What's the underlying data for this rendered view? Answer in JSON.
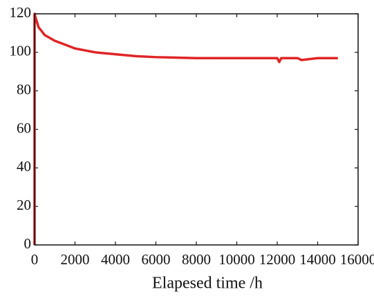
{
  "chart_data": {
    "type": "line",
    "x_label": "Elapesed time /h",
    "x": [
      0,
      0,
      50,
      200,
      500,
      1000,
      1500,
      2000,
      3000,
      4000,
      5000,
      6000,
      8000,
      9000,
      10000,
      11000,
      12000,
      12100,
      12200,
      13000,
      13200,
      14000,
      15000
    ],
    "series": [
      {
        "color": "#e02424",
        "values": [
          0,
          120,
          118,
          113,
          109,
          106,
          104,
          102,
          100,
          99,
          98,
          97.5,
          97,
          97,
          97,
          97,
          97,
          95,
          97,
          97,
          96,
          97,
          97
        ]
      }
    ],
    "xlim": [
      0,
      16000
    ],
    "xticks": [
      0,
      2000,
      4000,
      6000,
      8000,
      10000,
      12000,
      14000,
      16000
    ],
    "ylim": [
      0,
      120
    ],
    "yticks": [
      0,
      20,
      40,
      60,
      80,
      100,
      120
    ]
  }
}
